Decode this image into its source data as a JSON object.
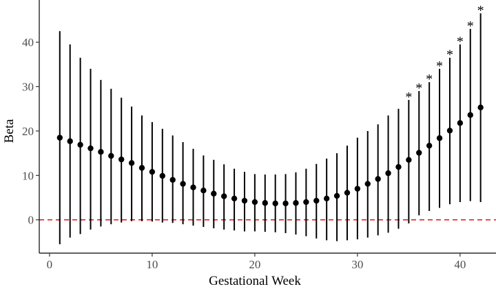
{
  "chart_data": {
    "type": "scatter",
    "title": "",
    "xlabel": "Gestational Week",
    "ylabel": "Beta",
    "xlim": [
      -1.0,
      43.5
    ],
    "ylim": [
      -7.5,
      49.5
    ],
    "xticks": [
      0,
      10,
      20,
      30,
      40
    ],
    "yticks": [
      0,
      10,
      20,
      30,
      40
    ],
    "grid": false,
    "legend": "none",
    "reference_line": {
      "y": 0,
      "style": "dashed",
      "color": "#e41a1c"
    },
    "significance_marker": "*",
    "series": [
      {
        "x": [
          1,
          2,
          3,
          4,
          5,
          6,
          7,
          8,
          9,
          10,
          11,
          12,
          13,
          14,
          15,
          16,
          17,
          18,
          19,
          20,
          21,
          22,
          23,
          24,
          25,
          26,
          27,
          28,
          29,
          30,
          31,
          32,
          33,
          34,
          35,
          36,
          37,
          38,
          39,
          40,
          41,
          42
        ],
        "y": [
          18.5,
          17.7,
          16.9,
          16.1,
          15.3,
          14.4,
          13.6,
          12.8,
          11.7,
          10.8,
          9.9,
          9.0,
          8.1,
          7.3,
          6.6,
          5.9,
          5.3,
          4.8,
          4.3,
          4.0,
          3.8,
          3.7,
          3.7,
          3.8,
          4.0,
          4.3,
          4.8,
          5.4,
          6.1,
          7.0,
          8.1,
          9.2,
          10.5,
          11.9,
          13.5,
          15.1,
          16.7,
          18.4,
          20.1,
          21.8,
          23.6,
          25.3
        ],
        "lower": [
          -5.5,
          -4.0,
          -3.2,
          -2.2,
          -1.5,
          -1.0,
          -0.6,
          -0.3,
          -0.3,
          -0.4,
          -0.6,
          -0.7,
          -1.0,
          -1.3,
          -1.6,
          -1.9,
          -2.2,
          -2.4,
          -2.6,
          -2.6,
          -2.7,
          -2.8,
          -3.0,
          -3.3,
          -3.7,
          -4.2,
          -4.6,
          -4.8,
          -4.6,
          -4.4,
          -4.0,
          -3.5,
          -2.9,
          -2.0,
          -0.8,
          1.0,
          2.0,
          2.7,
          3.5,
          4.0,
          4.2,
          4.0
        ],
        "upper": [
          42.5,
          39.5,
          36.5,
          34.0,
          31.5,
          29.5,
          27.5,
          25.5,
          23.5,
          22.0,
          20.5,
          19.0,
          17.5,
          16.0,
          14.5,
          13.5,
          12.5,
          11.5,
          10.8,
          10.3,
          10.2,
          10.2,
          10.3,
          10.7,
          11.5,
          12.6,
          13.8,
          15.0,
          16.7,
          18.5,
          20.0,
          21.5,
          23.5,
          25.0,
          27.0,
          29.0,
          31.0,
          34.0,
          36.5,
          39.5,
          43.0,
          46.5
        ],
        "significant": [
          false,
          false,
          false,
          false,
          false,
          false,
          false,
          false,
          false,
          false,
          false,
          false,
          false,
          false,
          false,
          false,
          false,
          false,
          false,
          false,
          false,
          false,
          false,
          false,
          false,
          false,
          false,
          false,
          false,
          false,
          false,
          false,
          false,
          false,
          true,
          true,
          true,
          true,
          true,
          true,
          true,
          true
        ]
      }
    ]
  }
}
